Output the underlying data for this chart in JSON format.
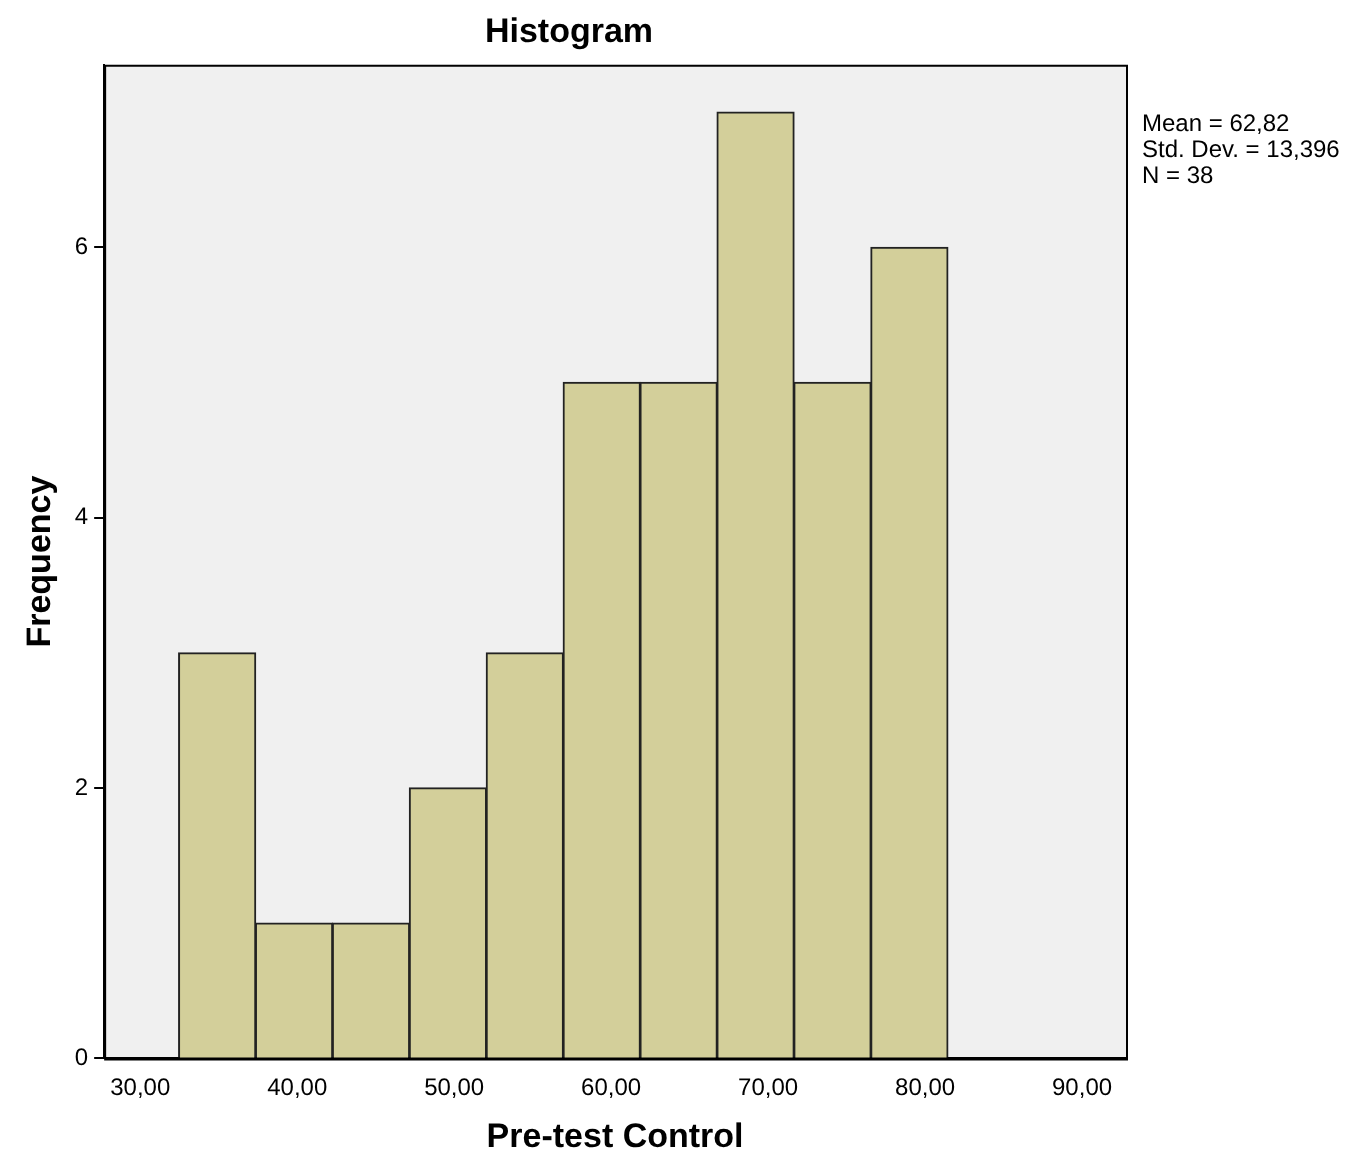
{
  "chart_data": {
    "type": "histogram",
    "title": "Histogram",
    "xlabel": "Pre-test Control",
    "ylabel": "Frequency",
    "bins": [
      32.45,
      37.35,
      42.25,
      47.15,
      52.05,
      56.95,
      61.85,
      66.75,
      71.65,
      76.55,
      81.45
    ],
    "values": [
      3,
      1,
      1,
      2,
      3,
      5,
      5,
      7,
      5,
      6
    ],
    "color": "#d3cf9a",
    "xlim": [
      27.7,
      92.8
    ],
    "xticks": [
      {
        "value": 30,
        "label": "30,00"
      },
      {
        "value": 40,
        "label": "40,00"
      },
      {
        "value": 50,
        "label": "50,00"
      },
      {
        "value": 60,
        "label": "60,00"
      },
      {
        "value": 70,
        "label": "70,00"
      },
      {
        "value": 80,
        "label": "80,00"
      },
      {
        "value": 90,
        "label": "90,00"
      }
    ],
    "ylim": [
      0,
      7.35
    ],
    "yticks": [
      0,
      2,
      4,
      6
    ],
    "grid": false,
    "legend": false,
    "annotations": [
      "Mean = 62,82",
      "Std. Dev. = 13,396",
      "N = 38"
    ]
  }
}
